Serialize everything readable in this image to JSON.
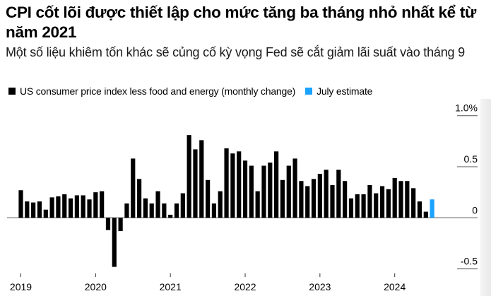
{
  "header": {
    "title": "CPI cốt lõi được thiết lập cho mức tăng ba tháng nhỏ nhất kể từ năm 2021",
    "subtitle": "Một số liệu khiêm tốn khác sẽ củng cố kỳ vọng Fed sẽ cắt giảm lãi suất vào tháng 9"
  },
  "legend": [
    {
      "label": "US consumer price index less food and energy (monthly change)",
      "color": "#000000"
    },
    {
      "label": "July estimate",
      "color": "#1aa3ff"
    }
  ],
  "chart_data": {
    "type": "bar",
    "title": "CPI cốt lõi được thiết lập cho mức tăng ba tháng nhỏ nhất kể từ năm 2021",
    "subtitle": "Một số liệu khiêm tốn khác sẽ củng cố kỳ vọng Fed sẽ cắt giảm lãi suất vào tháng 9",
    "xlabel": "",
    "ylabel": "",
    "ylim": [
      -0.55,
      1.0
    ],
    "y_ticks": [
      {
        "value": 1.0,
        "label": "1.0%"
      },
      {
        "value": 0.5,
        "label": "0.5"
      },
      {
        "value": 0,
        "label": "0"
      },
      {
        "value": -0.5,
        "label": "-0.5"
      }
    ],
    "x_ticks": [
      {
        "index": 0,
        "label": "2019"
      },
      {
        "index": 12,
        "label": "2020"
      },
      {
        "index": 24,
        "label": "2021"
      },
      {
        "index": 36,
        "label": "2022"
      },
      {
        "index": 48,
        "label": "2023"
      },
      {
        "index": 60,
        "label": "2024"
      }
    ],
    "grid": false,
    "legend_position": "top-left",
    "series": [
      {
        "name": "US consumer price index less food and energy (monthly change)",
        "color": "#000000",
        "start": "2019-01",
        "values": [
          0.27,
          0.16,
          0.15,
          0.16,
          0.08,
          0.2,
          0.21,
          0.23,
          0.19,
          0.22,
          0.22,
          0.18,
          0.25,
          0.26,
          -0.12,
          -0.48,
          -0.13,
          0.14,
          0.58,
          0.38,
          0.19,
          0.14,
          0.26,
          0.14,
          0.03,
          0.14,
          0.24,
          0.81,
          0.67,
          0.76,
          0.37,
          0.14,
          0.26,
          0.68,
          0.63,
          0.65,
          0.56,
          0.51,
          0.26,
          0.51,
          0.54,
          0.65,
          0.37,
          0.51,
          0.58,
          0.36,
          0.31,
          0.38,
          0.43,
          0.47,
          0.32,
          0.47,
          0.36,
          0.19,
          0.23,
          0.23,
          0.32,
          0.24,
          0.31,
          0.28,
          0.39,
          0.36,
          0.36,
          0.29,
          0.16,
          0.06
        ]
      },
      {
        "name": "July estimate",
        "color": "#1aa3ff",
        "start": "2024-07",
        "values": [
          0.18
        ]
      }
    ]
  }
}
